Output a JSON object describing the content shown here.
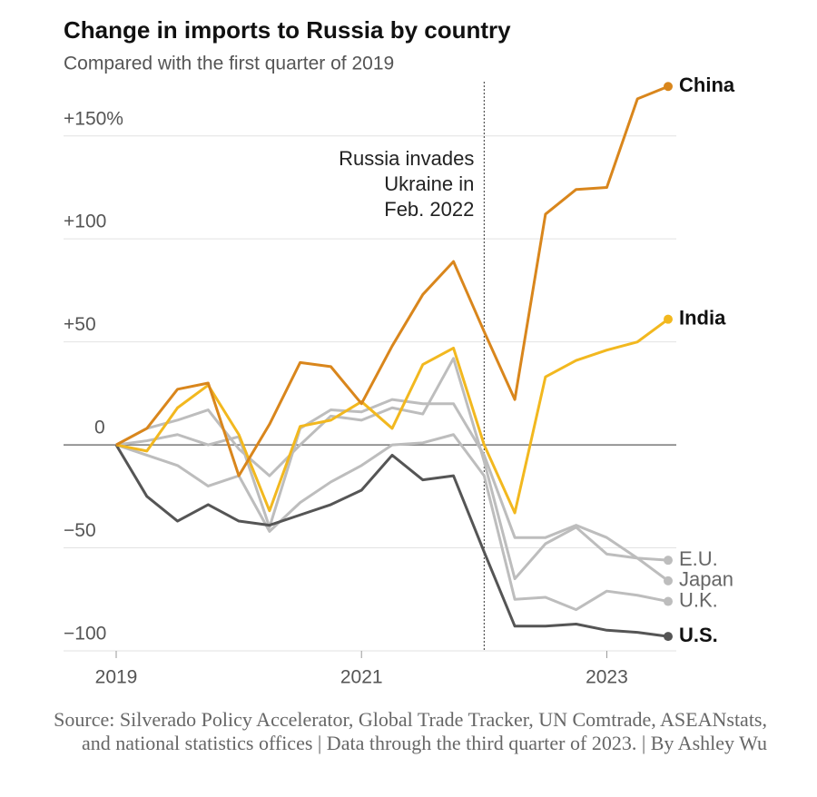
{
  "chart_data": {
    "type": "line",
    "title": "Change in imports to Russia by country",
    "subtitle": "Compared with the first quarter of 2019",
    "source": "Source: Silverado Policy Accelerator, Global Trade Tracker, UN Comtrade, ASEANstats, and national statistics offices | Data through the third quarter of 2023. | By Ashley Wu",
    "annotation": {
      "lines": [
        "Russia invades",
        "Ukraine in",
        "Feb. 2022"
      ],
      "x": 2022.0
    },
    "x": [
      2019,
      2019.25,
      2019.5,
      2019.75,
      2020,
      2020.25,
      2020.5,
      2020.75,
      2021,
      2021.25,
      2021.5,
      2021.75,
      2022,
      2022.25,
      2022.5,
      2022.75,
      2023,
      2023.25,
      2023.5
    ],
    "xlim": [
      2019,
      2023.5
    ],
    "xticks": [
      2019,
      2021,
      2023
    ],
    "ylim": [
      -100,
      175
    ],
    "yticks": [
      {
        "value": 150,
        "label": "+150%"
      },
      {
        "value": 100,
        "label": "+100"
      },
      {
        "value": 50,
        "label": "+50"
      },
      0,
      {
        "value": -50,
        "label": "−50"
      },
      {
        "value": -100,
        "label": "−100"
      }
    ],
    "grid": true,
    "series": [
      {
        "name": "E.U.",
        "color": "#bdbdbd",
        "values": [
          0,
          2,
          5,
          0,
          4,
          -40,
          8,
          17,
          16,
          22,
          20,
          20,
          -5,
          -45,
          -45,
          -39,
          -45,
          -55,
          -56
        ]
      },
      {
        "name": "Japan",
        "color": "#bdbdbd",
        "values": [
          0,
          8,
          12,
          17,
          -2,
          -15,
          0,
          14,
          12,
          18,
          15,
          42,
          -8,
          -65,
          -48,
          -40,
          -53,
          -55,
          -66
        ]
      },
      {
        "name": "U.K.",
        "color": "#bdbdbd",
        "values": [
          0,
          -5,
          -10,
          -20,
          -15,
          -42,
          -28,
          -18,
          -10,
          0,
          1,
          5,
          -15,
          -75,
          -74,
          -80,
          -71,
          -73,
          -76
        ]
      },
      {
        "name": "U.S.",
        "color": "#555555",
        "values": [
          0,
          -25,
          -37,
          -29,
          -37,
          -39,
          -34,
          -29,
          -22,
          -5,
          -17,
          -15,
          -52,
          -88,
          -88,
          -87,
          -90,
          -91,
          -93
        ]
      },
      {
        "name": "India",
        "color": "#f2b81f",
        "values": [
          0,
          -3,
          18,
          29,
          5,
          -32,
          9,
          12,
          21,
          8,
          39,
          47,
          0,
          -33,
          33,
          41,
          46,
          50,
          61
        ]
      },
      {
        "name": "China",
        "color": "#d9861c",
        "values": [
          0,
          8,
          27,
          30,
          -15,
          10,
          40,
          38,
          20,
          48,
          73,
          89,
          55,
          22,
          112,
          124,
          125,
          168,
          174
        ]
      }
    ]
  }
}
